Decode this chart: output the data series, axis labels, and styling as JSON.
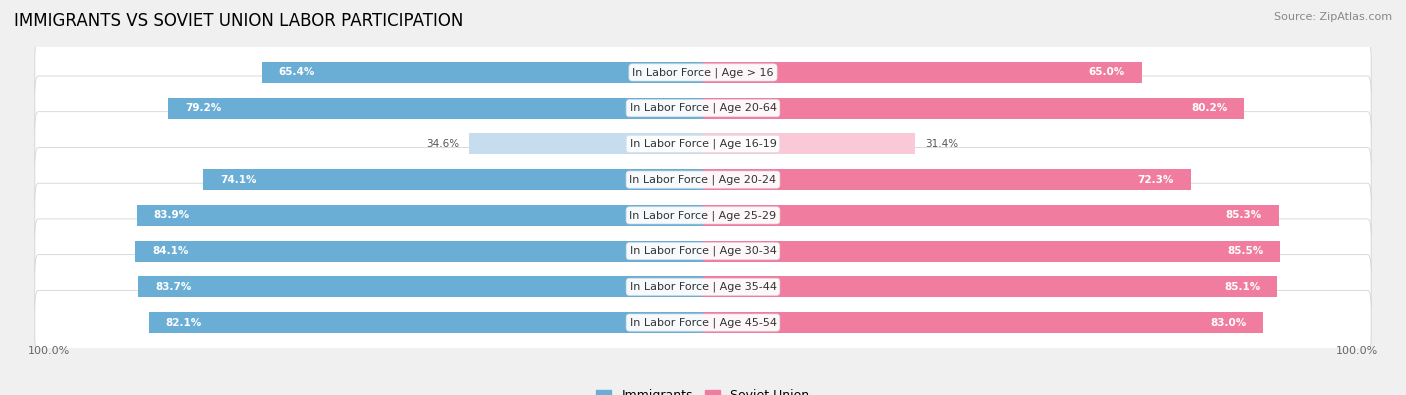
{
  "title": "IMMIGRANTS VS SOVIET UNION LABOR PARTICIPATION",
  "source": "Source: ZipAtlas.com",
  "categories": [
    "In Labor Force | Age > 16",
    "In Labor Force | Age 20-64",
    "In Labor Force | Age 16-19",
    "In Labor Force | Age 20-24",
    "In Labor Force | Age 25-29",
    "In Labor Force | Age 30-34",
    "In Labor Force | Age 35-44",
    "In Labor Force | Age 45-54"
  ],
  "immigrants": [
    65.4,
    79.2,
    34.6,
    74.1,
    83.9,
    84.1,
    83.7,
    82.1
  ],
  "soviet_union": [
    65.0,
    80.2,
    31.4,
    72.3,
    85.3,
    85.5,
    85.1,
    83.0
  ],
  "immigrant_color": "#6aaed6",
  "soviet_color": "#f07ca0",
  "immigrant_color_light": "#c6ddf0",
  "soviet_color_light": "#f9c9d8",
  "background_color": "#f0f0f0",
  "row_bg_color": "#ffffff",
  "bar_height": 0.72,
  "max_value": 100.0,
  "title_fontsize": 12,
  "label_fontsize": 8,
  "value_fontsize": 7.5,
  "legend_fontsize": 9,
  "low_threshold": 50
}
